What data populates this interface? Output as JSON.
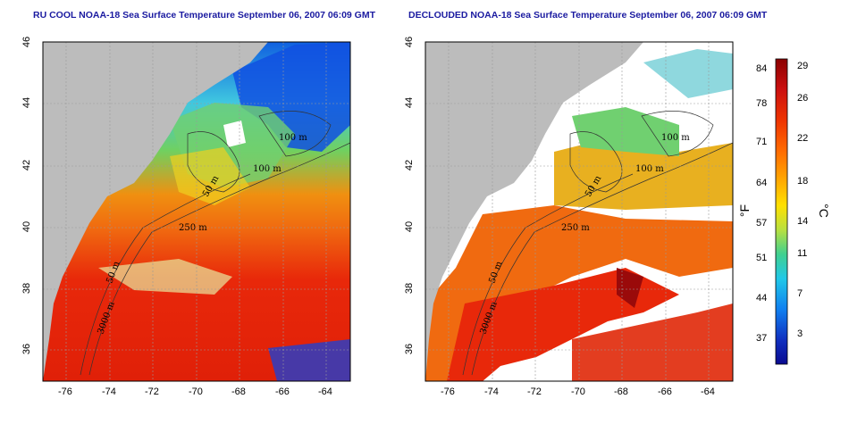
{
  "left_panel": {
    "title": "RU COOL NOAA-18 Sea Surface Temperature September 06, 2007 06:09 GMT",
    "x_ticks": [
      "-76",
      "-74",
      "-72",
      "-70",
      "-68",
      "-66",
      "-64"
    ],
    "y_ticks": [
      "36",
      "38",
      "40",
      "42",
      "44",
      "46"
    ],
    "contour_labels": [
      "100 m",
      "100 m",
      "50 m",
      "250 m",
      "50 m",
      "3000 m"
    ]
  },
  "right_panel": {
    "title": "DECLOUDED NOAA-18 Sea Surface Temperature September 06, 2007 06:09 GMT",
    "x_ticks": [
      "-76",
      "-74",
      "-72",
      "-70",
      "-68",
      "-66",
      "-64"
    ],
    "y_ticks": [
      "36",
      "38",
      "40",
      "42",
      "44",
      "46"
    ],
    "contour_labels": [
      "100 m",
      "100 m",
      "50 m",
      "250 m",
      "50 m",
      "3000 m"
    ]
  },
  "colorbar": {
    "fahrenheit_ticks": [
      "84",
      "78",
      "71",
      "64",
      "57",
      "51",
      "44",
      "37"
    ],
    "celsius_ticks": [
      "29",
      "26",
      "22",
      "18",
      "14",
      "11",
      "7",
      "3"
    ],
    "fahrenheit_unit": "°F",
    "celsius_unit": "°C",
    "colors": [
      "#8b0000",
      "#cc1010",
      "#ee3300",
      "#ff6a00",
      "#ffaa00",
      "#ffe000",
      "#b8e040",
      "#40d090",
      "#20c8e8",
      "#1080f0",
      "#1030c0",
      "#0a0a90"
    ]
  },
  "map_colors": {
    "land": "#bcbcbc",
    "warm": "#e8280a",
    "orange": "#f06a10",
    "yellow": "#e8e020",
    "green": "#60d070",
    "cyan": "#30c8f0",
    "blue": "#1050e0",
    "cloud": "#ffffff"
  }
}
